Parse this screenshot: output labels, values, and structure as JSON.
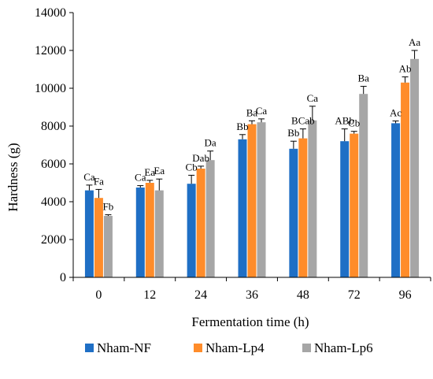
{
  "chart_data": {
    "type": "bar",
    "xlabel": "Fermentation time (h)",
    "ylabel": "Hardness (g)",
    "ylim": [
      0,
      14000
    ],
    "yticks": [
      0,
      2000,
      4000,
      6000,
      8000,
      10000,
      12000,
      14000
    ],
    "categories": [
      "0",
      "12",
      "24",
      "36",
      "48",
      "72",
      "96"
    ],
    "grid": false,
    "legend_position": "bottom",
    "series": [
      {
        "name": "Nham-NF",
        "color": "#1f6fc5",
        "values": [
          4600,
          4750,
          4950,
          7300,
          6800,
          7200,
          8150
        ],
        "errors": [
          280,
          100,
          450,
          250,
          400,
          650,
          120
        ],
        "labels": [
          "Ca",
          "Ca",
          "Cb",
          "Bb",
          "Bb",
          "ABb",
          "Ac"
        ]
      },
      {
        "name": "Nham-Lp4",
        "color": "#ff8c2a",
        "values": [
          4200,
          5000,
          5750,
          8100,
          7350,
          7600,
          10300
        ],
        "errors": [
          450,
          130,
          130,
          180,
          500,
          120,
          300
        ],
        "labels": [
          "Fa",
          "Ea",
          "Dab",
          "Ba",
          "BCab",
          "Cb",
          "Ab"
        ]
      },
      {
        "name": "Nham-Lp6",
        "color": "#a6a6a6",
        "values": [
          3250,
          4600,
          6200,
          8200,
          8300,
          9700,
          11550
        ],
        "errors": [
          60,
          600,
          480,
          180,
          750,
          400,
          450
        ],
        "labels": [
          "Fb",
          "Ea",
          "Da",
          "Ca",
          "Ca",
          "Ba",
          "Aa"
        ]
      }
    ]
  }
}
